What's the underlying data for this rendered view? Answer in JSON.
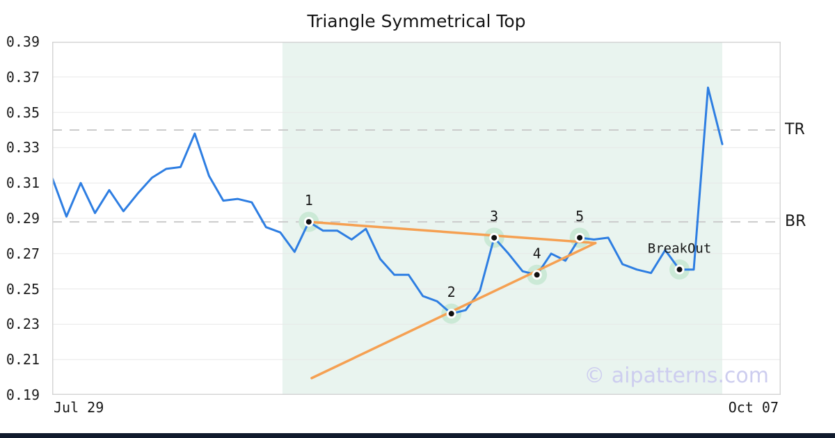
{
  "chart_data": {
    "type": "line",
    "title": "Triangle Symmetrical Top",
    "watermark": "© aipatterns.com",
    "x_axis": {
      "start_label": "Jul 29",
      "end_label": "Oct 07"
    },
    "y_axis": {
      "min": 0.19,
      "max": 0.39,
      "tick_step": 0.02,
      "tick_labels": [
        "0.39",
        "0.37",
        "0.35",
        "0.33",
        "0.31",
        "0.29",
        "0.27",
        "0.25",
        "0.23",
        "0.21",
        "0.19"
      ]
    },
    "grid": true,
    "legend": false,
    "series": [
      {
        "name": "price",
        "values": [
          0.313,
          0.291,
          0.31,
          0.293,
          0.306,
          0.294,
          0.304,
          0.313,
          0.318,
          0.319,
          0.338,
          0.314,
          0.3,
          0.301,
          0.299,
          0.285,
          0.282,
          0.271,
          0.288,
          0.283,
          0.283,
          0.278,
          0.284,
          0.267,
          0.258,
          0.258,
          0.246,
          0.243,
          0.236,
          0.238,
          0.249,
          0.279,
          0.27,
          0.26,
          0.258,
          0.27,
          0.266,
          0.279,
          0.278,
          0.279,
          0.264,
          0.261,
          0.259,
          0.272,
          0.261,
          0.261,
          0.364,
          0.332
        ]
      }
    ],
    "pattern_points": [
      {
        "label": "1",
        "index": 18,
        "value": 0.288
      },
      {
        "label": "2",
        "index": 28,
        "value": 0.236
      },
      {
        "label": "3",
        "index": 31,
        "value": 0.279
      },
      {
        "label": "4",
        "index": 34,
        "value": 0.258
      },
      {
        "label": "5",
        "index": 37,
        "value": 0.279
      },
      {
        "label": "BreakOut",
        "index": 44,
        "value": 0.261
      }
    ],
    "levels": [
      {
        "label": "TR",
        "value": 0.34
      },
      {
        "label": "BR",
        "value": 0.288
      }
    ],
    "trendlines": [
      {
        "name": "upper",
        "from_index": 18.0,
        "from_value": 0.288,
        "to_index": 38.1,
        "to_value": 0.276
      },
      {
        "name": "lower",
        "from_index": 18.2,
        "from_value": 0.1995,
        "to_index": 38.1,
        "to_value": 0.276
      }
    ],
    "highlight_region": {
      "from_index": 16.15,
      "to_index": 47
    }
  },
  "colors": {
    "price_line": "#2e7ee2",
    "trendline": "#f5a052",
    "marker_halo": "#cbe9d6",
    "marker_ring": "#ffffff",
    "marker_dot": "#111111",
    "level_dash": "#cbcbcb",
    "gridline": "#e8e8e8",
    "plot_border": "#d5d5d5",
    "highlight_bg": "#e9f4ef",
    "watermark": "#cdcdef",
    "bottom_bar": "#101a2c",
    "title_text": "#141414",
    "axis_text": "#1c1c1c",
    "label_text": "#161616"
  }
}
